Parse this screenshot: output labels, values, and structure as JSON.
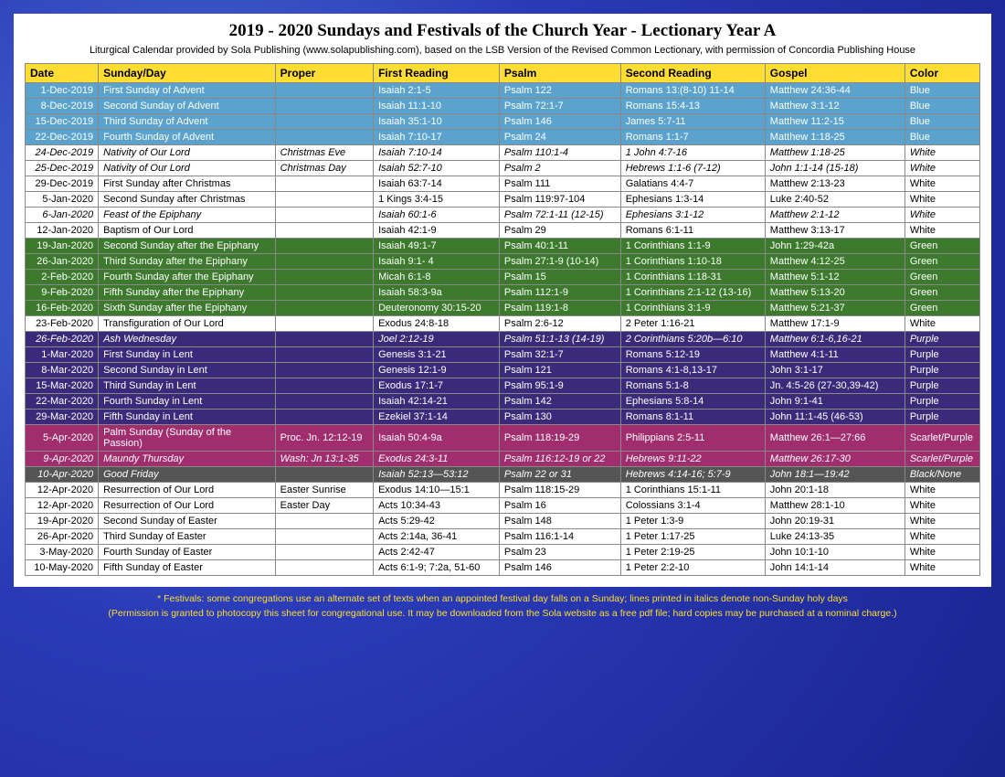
{
  "title": "2019 - 2020 Sundays and Festivals of the Church Year - Lectionary Year A",
  "subtitle": "Liturgical Calendar provided by Sola Publishing (www.solapublishing.com), based on the LSB Version of the Revised Common Lectionary, with permission of Concordia Publishing House",
  "headers": [
    "Date",
    "Sunday/Day",
    "Proper",
    "First Reading",
    "Psalm",
    "Second Reading",
    "Gospel",
    "Color"
  ],
  "colors": {
    "blue": {
      "bg": "#5ba3cc",
      "fg": "#ffffff"
    },
    "white": {
      "bg": "#ffffff",
      "fg": "#000000"
    },
    "green": {
      "bg": "#3d7a2e",
      "fg": "#ffffff"
    },
    "purple": {
      "bg": "#3a2b7a",
      "fg": "#ffffff"
    },
    "scarlet": {
      "bg": "#a02e6e",
      "fg": "#ffffff"
    },
    "dark": {
      "bg": "#555555",
      "fg": "#ffffff"
    },
    "header": {
      "bg": "#ffdd33",
      "fg": "#000000"
    }
  },
  "rows": [
    {
      "c": "blue",
      "i": false,
      "d": [
        "1-Dec-2019",
        "First Sunday of Advent",
        "",
        "Isaiah 2:1-5",
        "Psalm 122",
        "Romans 13:(8-10) 11-14",
        "Matthew 24:36-44",
        "Blue"
      ]
    },
    {
      "c": "blue",
      "i": false,
      "d": [
        "8-Dec-2019",
        "Second Sunday of Advent",
        "",
        "Isaiah 11:1-10",
        "Psalm 72:1-7",
        "Romans 15:4-13",
        "Matthew 3:1-12",
        "Blue"
      ]
    },
    {
      "c": "blue",
      "i": false,
      "d": [
        "15-Dec-2019",
        "Third Sunday of Advent",
        "",
        "Isaiah 35:1-10",
        "Psalm 146",
        "James 5:7-11",
        "Matthew 11:2-15",
        "Blue"
      ]
    },
    {
      "c": "blue",
      "i": false,
      "d": [
        "22-Dec-2019",
        "Fourth Sunday of Advent",
        "",
        "Isaiah 7:10-17",
        "Psalm 24",
        "Romans 1:1-7",
        "Matthew 1:18-25",
        "Blue"
      ]
    },
    {
      "c": "white",
      "i": true,
      "d": [
        "24-Dec-2019",
        "Nativity of Our Lord",
        "Christmas Eve",
        "Isaiah 7:10-14",
        "Psalm 110:1-4",
        "1 John 4:7-16",
        "Matthew 1:18-25",
        "White"
      ]
    },
    {
      "c": "white",
      "i": true,
      "d": [
        "25-Dec-2019",
        "Nativity of Our Lord",
        "Christmas Day",
        "Isaiah 52:7-10",
        "Psalm 2",
        "Hebrews 1:1-6 (7-12)",
        "John 1:1-14 (15-18)",
        "White"
      ]
    },
    {
      "c": "white",
      "i": false,
      "d": [
        "29-Dec-2019",
        "First Sunday after Christmas",
        "",
        "Isaiah 63:7-14",
        "Psalm 111",
        "Galatians 4:4-7",
        "Matthew 2:13-23",
        "White"
      ]
    },
    {
      "c": "white",
      "i": false,
      "d": [
        "5-Jan-2020",
        "Second Sunday after Christmas",
        "",
        "1 Kings 3:4-15",
        "Psalm 119:97-104",
        "Ephesians 1:3-14",
        "Luke 2:40-52",
        "White"
      ]
    },
    {
      "c": "white",
      "i": true,
      "d": [
        "6-Jan-2020",
        "Feast of the Epiphany",
        "",
        "Isaiah 60:1-6",
        "Psalm 72:1-11 (12-15)",
        "Ephesians 3:1-12",
        "Matthew 2:1-12",
        "White"
      ]
    },
    {
      "c": "white",
      "i": false,
      "d": [
        "12-Jan-2020",
        "Baptism of Our Lord",
        "",
        "Isaiah 42:1-9",
        "Psalm 29",
        "Romans 6:1-11",
        "Matthew 3:13-17",
        "White"
      ]
    },
    {
      "c": "green",
      "i": false,
      "d": [
        "19-Jan-2020",
        "Second Sunday after the Epiphany",
        "",
        "Isaiah 49:1-7",
        "Psalm 40:1-11",
        "1 Corinthians 1:1-9",
        "John 1:29-42a",
        "Green"
      ]
    },
    {
      "c": "green",
      "i": false,
      "d": [
        "26-Jan-2020",
        "Third Sunday after the Epiphany",
        "",
        "Isaiah 9:1- 4",
        "Psalm 27:1-9 (10-14)",
        "1 Corinthians 1:10-18",
        "Matthew 4:12-25",
        "Green"
      ]
    },
    {
      "c": "green",
      "i": false,
      "d": [
        "2-Feb-2020",
        "Fourth Sunday after the Epiphany",
        "",
        "Micah 6:1-8",
        "Psalm 15",
        "1 Corinthians 1:18-31",
        "Matthew 5:1-12",
        "Green"
      ]
    },
    {
      "c": "green",
      "i": false,
      "d": [
        "9-Feb-2020",
        "Fifth Sunday after the Epiphany",
        "",
        "Isaiah 58:3-9a",
        "Psalm 112:1-9",
        "1 Corinthians 2:1-12 (13-16)",
        "Matthew 5:13-20",
        "Green"
      ]
    },
    {
      "c": "green",
      "i": false,
      "d": [
        "16-Feb-2020",
        "Sixth Sunday after the Epiphany",
        "",
        "Deuteronomy 30:15-20",
        "Psalm 119:1-8",
        "1 Corinthians 3:1-9",
        "Matthew 5:21-37",
        "Green"
      ]
    },
    {
      "c": "white",
      "i": false,
      "d": [
        "23-Feb-2020",
        "Transfiguration of Our Lord",
        "",
        "Exodus 24:8-18",
        "Psalm 2:6-12",
        "2 Peter 1:16-21",
        "Matthew 17:1-9",
        "White"
      ]
    },
    {
      "c": "purple",
      "i": true,
      "d": [
        "26-Feb-2020",
        "Ash Wednesday",
        "",
        "Joel 2:12-19",
        "Psalm 51:1-13 (14-19)",
        "2 Corinthians 5:20b—6:10",
        "Matthew 6:1-6,16-21",
        "Purple"
      ]
    },
    {
      "c": "purple",
      "i": false,
      "d": [
        "1-Mar-2020",
        "First Sunday in Lent",
        "",
        "Genesis 3:1-21",
        "Psalm 32:1-7",
        "Romans 5:12-19",
        "Matthew 4:1-11",
        "Purple"
      ]
    },
    {
      "c": "purple",
      "i": false,
      "d": [
        "8-Mar-2020",
        "Second Sunday in Lent",
        "",
        "Genesis 12:1-9",
        "Psalm 121",
        "Romans 4:1-8,13-17",
        "John 3:1-17",
        "Purple"
      ]
    },
    {
      "c": "purple",
      "i": false,
      "d": [
        "15-Mar-2020",
        "Third Sunday in Lent",
        "",
        "Exodus 17:1-7",
        "Psalm 95:1-9",
        "Romans 5:1-8",
        "Jn. 4:5-26 (27-30,39-42)",
        "Purple"
      ]
    },
    {
      "c": "purple",
      "i": false,
      "d": [
        "22-Mar-2020",
        "Fourth Sunday in Lent",
        "",
        "Isaiah 42:14-21",
        "Psalm 142",
        "Ephesians 5:8-14",
        "John 9:1-41",
        "Purple"
      ]
    },
    {
      "c": "purple",
      "i": false,
      "d": [
        "29-Mar-2020",
        "Fifth Sunday in Lent",
        "",
        "Ezekiel 37:1-14",
        "Psalm 130",
        "Romans 8:1-11",
        "John 11:1-45 (46-53)",
        "Purple"
      ]
    },
    {
      "c": "scarlet",
      "i": false,
      "d": [
        "5-Apr-2020",
        "Palm Sunday (Sunday of the Passion)",
        "Proc. Jn. 12:12-19",
        "Isaiah 50:4-9a",
        "Psalm 118:19-29",
        "Philippians 2:5-11",
        "Matthew 26:1—27:66",
        "Scarlet/Purple"
      ]
    },
    {
      "c": "scarlet",
      "i": true,
      "d": [
        "9-Apr-2020",
        "Maundy Thursday",
        "Wash: Jn 13:1-35",
        "Exodus 24:3-11",
        "Psalm 116:12-19 or 22",
        "Hebrews 9:11-22",
        "Matthew 26:17-30",
        "Scarlet/Purple"
      ]
    },
    {
      "c": "dark",
      "i": true,
      "d": [
        "10-Apr-2020",
        "Good Friday",
        "",
        "Isaiah 52:13—53:12",
        "Psalm 22 or 31",
        "Hebrews 4:14-16; 5:7-9",
        "John 18:1—19:42",
        "Black/None"
      ]
    },
    {
      "c": "white",
      "i": false,
      "d": [
        "12-Apr-2020",
        "Resurrection of Our Lord",
        "Easter Sunrise",
        "Exodus 14:10—15:1",
        "Psalm 118:15-29",
        "1 Corinthians 15:1-11",
        "John 20:1-18",
        "White"
      ]
    },
    {
      "c": "white",
      "i": false,
      "d": [
        "12-Apr-2020",
        "Resurrection of Our Lord",
        "Easter Day",
        "Acts 10:34-43",
        "Psalm 16",
        "Colossians 3:1-4",
        "Matthew 28:1-10",
        "White"
      ]
    },
    {
      "c": "white",
      "i": false,
      "d": [
        "19-Apr-2020",
        "Second Sunday of Easter",
        "",
        "Acts 5:29-42",
        "Psalm 148",
        "1 Peter 1:3-9",
        "John 20:19-31",
        "White"
      ]
    },
    {
      "c": "white",
      "i": false,
      "d": [
        "26-Apr-2020",
        "Third Sunday of Easter",
        "",
        "Acts 2:14a, 36-41",
        "Psalm 116:1-14",
        "1 Peter 1:17-25",
        "Luke 24:13-35",
        "White"
      ]
    },
    {
      "c": "white",
      "i": false,
      "d": [
        "3-May-2020",
        "Fourth Sunday of Easter",
        "",
        "Acts 2:42-47",
        "Psalm 23",
        "1 Peter 2:19-25",
        "John 10:1-10",
        "White"
      ]
    },
    {
      "c": "white",
      "i": false,
      "d": [
        "10-May-2020",
        "Fifth Sunday of Easter",
        "",
        "Acts 6:1-9; 7:2a, 51-60",
        "Psalm 146",
        "1 Peter 2:2-10",
        "John 14:1-14",
        "White"
      ]
    }
  ],
  "footnote1": "* Festivals: some congregations use an alternate set of texts when an appointed festival day falls on a Sunday; lines printed in italics denote non-Sunday holy days",
  "footnote2": "(Permission is granted to photocopy this sheet for congregational use. It may be downloaded from the Sola website as a free pdf file; hard copies may be purchased at a nominal charge.)"
}
